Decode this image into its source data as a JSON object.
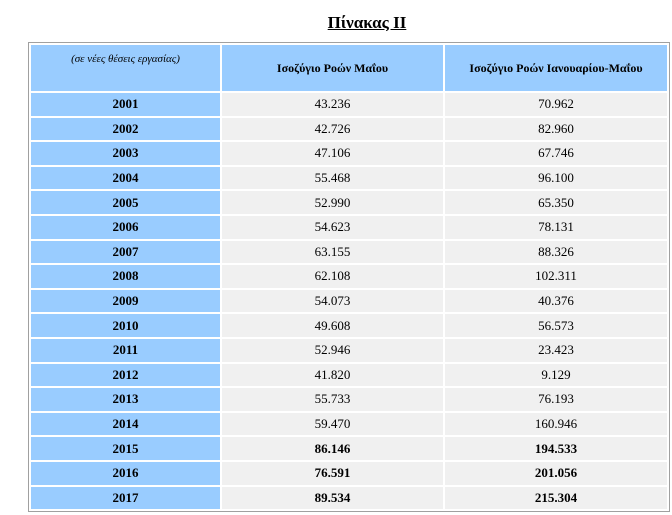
{
  "title": "Πίνακας ΙΙ",
  "table": {
    "header": [
      "(σε νέες θέσεις εργασίας)",
      "Ισοζύγιο Ροών Μαΐου",
      "Ισοζύγιο Ροών Ιανουαρίου-Μαΐου"
    ],
    "rows": [
      [
        "2001",
        "43.236",
        "70.962"
      ],
      [
        "2002",
        "42.726",
        "82.960"
      ],
      [
        "2003",
        "47.106",
        "67.746"
      ],
      [
        "2004",
        "55.468",
        "96.100"
      ],
      [
        "2005",
        "52.990",
        "65.350"
      ],
      [
        "2006",
        "54.623",
        "78.131"
      ],
      [
        "2007",
        "63.155",
        "88.326"
      ],
      [
        "2008",
        "62.108",
        "102.311"
      ],
      [
        "2009",
        "54.073",
        "40.376"
      ],
      [
        "2010",
        "49.608",
        "56.573"
      ],
      [
        "2011",
        "52.946",
        "23.423"
      ],
      [
        "2012",
        "41.820",
        "9.129"
      ],
      [
        "2013",
        "55.733",
        "76.193"
      ],
      [
        "2014",
        "59.470",
        "160.946"
      ],
      [
        "2015",
        "86.146",
        "194.533"
      ],
      [
        "2016",
        "76.591",
        "201.056"
      ],
      [
        "2017",
        "89.534",
        "215.304"
      ]
    ]
  }
}
